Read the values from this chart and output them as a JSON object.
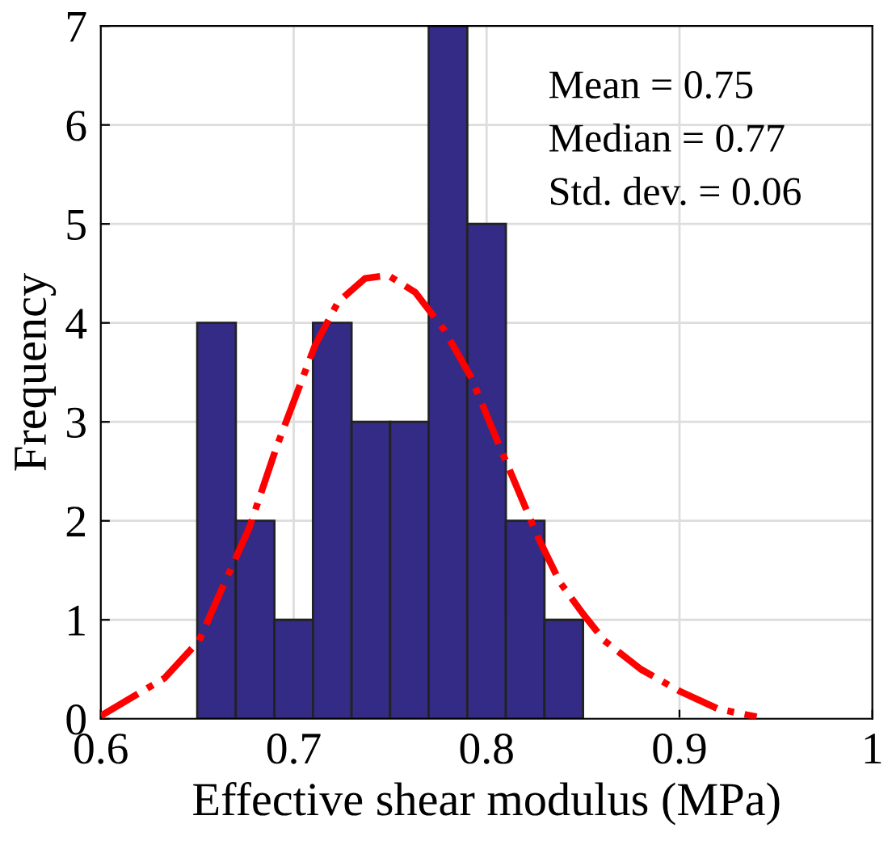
{
  "chart_data": {
    "type": "histogram",
    "xlabel": "Effective shear modulus (MPa)",
    "ylabel": "Frequency",
    "bins": [
      0.65,
      0.67,
      0.69,
      0.71,
      0.73,
      0.75,
      0.77,
      0.79,
      0.81,
      0.83,
      0.85
    ],
    "values": [
      4,
      2,
      1,
      4,
      3,
      3,
      7,
      5,
      2,
      1
    ],
    "color": "#332b85",
    "series": [
      {
        "type": "line",
        "color": "#ff0000",
        "line_style": "dashdot",
        "x": [
          0.6,
          0.633,
          0.651,
          0.662,
          0.677,
          0.691,
          0.711,
          0.723,
          0.737,
          0.749,
          0.763,
          0.778,
          0.792,
          0.807,
          0.827,
          0.838,
          0.85,
          0.861,
          0.88,
          0.9,
          0.92,
          0.94
        ],
        "values": [
          0.03,
          0.41,
          0.79,
          1.28,
          1.93,
          2.74,
          3.77,
          4.21,
          4.45,
          4.48,
          4.31,
          3.93,
          3.45,
          2.74,
          1.82,
          1.38,
          1.06,
          0.79,
          0.5,
          0.28,
          0.1,
          0.02
        ]
      }
    ],
    "annotations": [
      "Mean = 0.75",
      "Median = 0.77",
      "Std. dev. = 0.06"
    ],
    "xlim": [
      0.6,
      1
    ],
    "xticks": [
      0.6,
      0.7,
      0.8,
      0.9,
      {
        "value": 1,
        "label": "1"
      }
    ],
    "ylim": [
      0,
      7
    ],
    "yticks": [
      0,
      1,
      2,
      3,
      4,
      5,
      6,
      7
    ],
    "grid": true
  }
}
